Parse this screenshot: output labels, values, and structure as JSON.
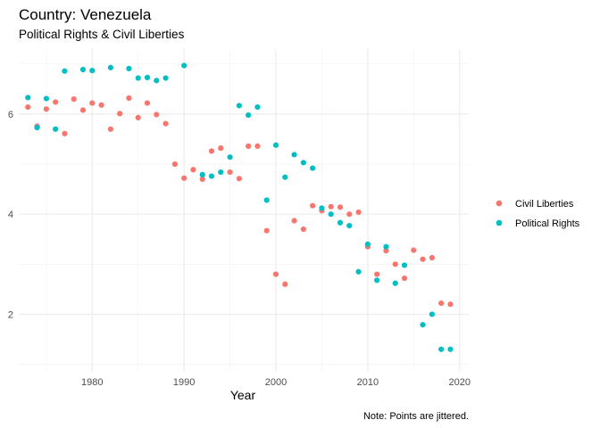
{
  "chart_data": {
    "type": "scatter",
    "title": "Country: Venezuela",
    "subtitle": "Political Rights & Civil Liberties",
    "xlabel": "Year",
    "ylabel": "",
    "caption": "Note: Points are jittered.",
    "xlim": [
      1972,
      2021
    ],
    "ylim": [
      0.85,
      7.3
    ],
    "x_ticks": [
      1980,
      1990,
      2000,
      2010,
      2020
    ],
    "y_ticks": [
      2,
      4,
      6
    ],
    "grid": true,
    "legend_position": "right",
    "series": [
      {
        "name": "Civil Liberties",
        "color": "#F8766D",
        "points": [
          [
            1973,
            6.14
          ],
          [
            1974,
            5.76
          ],
          [
            1975,
            6.1
          ],
          [
            1976,
            6.24
          ],
          [
            1977,
            5.61
          ],
          [
            1978,
            6.3
          ],
          [
            1979,
            6.08
          ],
          [
            1980,
            6.22
          ],
          [
            1981,
            6.18
          ],
          [
            1982,
            5.7
          ],
          [
            1983,
            6.01
          ],
          [
            1984,
            6.32
          ],
          [
            1985,
            5.93
          ],
          [
            1986,
            6.22
          ],
          [
            1987,
            5.99
          ],
          [
            1988,
            5.81
          ],
          [
            1989,
            5.0
          ],
          [
            1990,
            4.72
          ],
          [
            1991,
            4.89
          ],
          [
            1992,
            4.7
          ],
          [
            1993,
            5.26
          ],
          [
            1994,
            5.32
          ],
          [
            1995,
            4.84
          ],
          [
            1996,
            4.71
          ],
          [
            1997,
            5.36
          ],
          [
            1998,
            5.36
          ],
          [
            1999,
            3.67
          ],
          [
            2000,
            2.8
          ],
          [
            2001,
            2.6
          ],
          [
            2002,
            3.87
          ],
          [
            2003,
            3.7
          ],
          [
            2004,
            4.17
          ],
          [
            2005,
            4.07
          ],
          [
            2006,
            4.15
          ],
          [
            2007,
            4.14
          ],
          [
            2008,
            4.0
          ],
          [
            2009,
            4.04
          ],
          [
            2010,
            3.35
          ],
          [
            2011,
            2.8
          ],
          [
            2012,
            3.27
          ],
          [
            2013,
            3.0
          ],
          [
            2014,
            2.72
          ],
          [
            2015,
            3.28
          ],
          [
            2016,
            3.1
          ],
          [
            2017,
            3.13
          ],
          [
            2018,
            2.22
          ],
          [
            2019,
            2.2
          ]
        ]
      },
      {
        "name": "Political Rights",
        "color": "#00BFC4",
        "points": [
          [
            1973,
            6.33
          ],
          [
            1974,
            5.73
          ],
          [
            1975,
            6.31
          ],
          [
            1976,
            5.7
          ],
          [
            1977,
            6.86
          ],
          [
            1979,
            6.89
          ],
          [
            1980,
            6.87
          ],
          [
            1982,
            6.93
          ],
          [
            1984,
            6.91
          ],
          [
            1985,
            6.72
          ],
          [
            1986,
            6.73
          ],
          [
            1987,
            6.67
          ],
          [
            1988,
            6.72
          ],
          [
            1990,
            6.97
          ],
          [
            1992,
            4.79
          ],
          [
            1993,
            4.76
          ],
          [
            1994,
            4.84
          ],
          [
            1995,
            5.14
          ],
          [
            1996,
            6.17
          ],
          [
            1997,
            5.98
          ],
          [
            1998,
            6.14
          ],
          [
            1999,
            4.28
          ],
          [
            2000,
            5.38
          ],
          [
            2001,
            4.74
          ],
          [
            2002,
            5.19
          ],
          [
            2003,
            5.03
          ],
          [
            2004,
            4.92
          ],
          [
            2005,
            4.12
          ],
          [
            2006,
            4.0
          ],
          [
            2007,
            3.83
          ],
          [
            2008,
            3.77
          ],
          [
            2009,
            2.85
          ],
          [
            2010,
            3.4
          ],
          [
            2011,
            2.68
          ],
          [
            2012,
            3.35
          ],
          [
            2013,
            2.62
          ],
          [
            2014,
            2.98
          ],
          [
            2016,
            1.79
          ],
          [
            2017,
            2.0
          ],
          [
            2018,
            1.3
          ],
          [
            2019,
            1.3
          ]
        ]
      }
    ]
  }
}
